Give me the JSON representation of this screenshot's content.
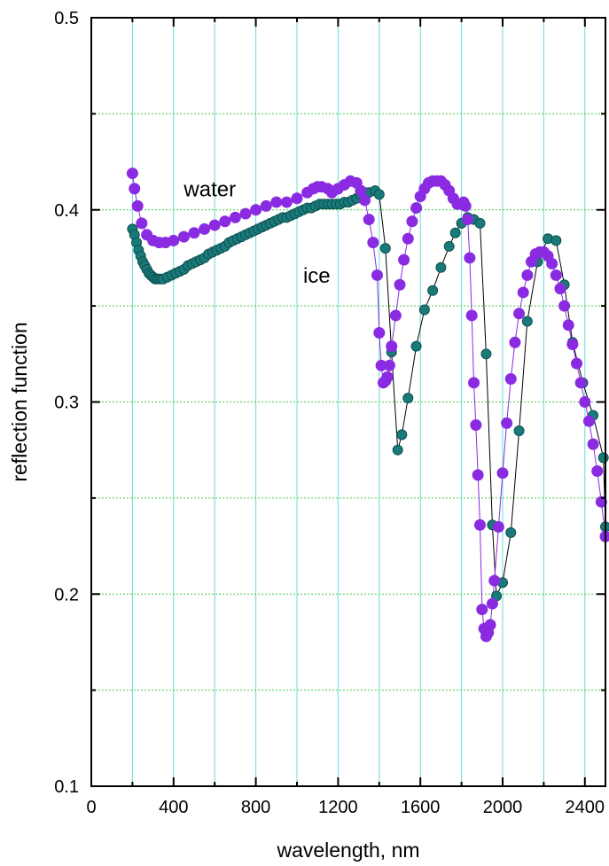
{
  "chart_data": {
    "type": "scatter",
    "xlabel": "wavelength, nm",
    "ylabel": "reflection function",
    "xlim": [
      0,
      2500
    ],
    "ylim": [
      0.1,
      0.5
    ],
    "x_ticks": [
      0,
      400,
      800,
      1200,
      1600,
      2000,
      2400
    ],
    "y_ticks": [
      0.1,
      0.2,
      0.3,
      0.4,
      0.5
    ],
    "x_tick_labels": [
      "0",
      "400",
      "800",
      "1200",
      "1600",
      "2000",
      "2400"
    ],
    "y_tick_labels": [
      "0.1",
      "0.2",
      "0.3",
      "0.4",
      "0.5"
    ],
    "grid": true,
    "colors": {
      "water": "#8a2be2",
      "ice": "#1a7a7a",
      "grid_x": "#66dddd",
      "grid_y": "#44cc44",
      "line": "#000000"
    },
    "series": [
      {
        "name": "water",
        "label_at": [
          450,
          0.407
        ],
        "marker": "circle",
        "x": [
          200,
          210,
          225,
          245,
          270,
          300,
          330,
          360,
          400,
          450,
          500,
          550,
          600,
          650,
          700,
          750,
          800,
          850,
          900,
          950,
          1000,
          1050,
          1080,
          1100,
          1120,
          1150,
          1170,
          1200,
          1230,
          1260,
          1290,
          1310,
          1330,
          1350,
          1370,
          1390,
          1400,
          1410,
          1420,
          1430,
          1440,
          1450,
          1460,
          1480,
          1500,
          1520,
          1540,
          1560,
          1580,
          1600,
          1620,
          1640,
          1660,
          1680,
          1700,
          1720,
          1740,
          1760,
          1780,
          1800,
          1810,
          1820,
          1830,
          1840,
          1850,
          1860,
          1870,
          1880,
          1890,
          1900,
          1910,
          1920,
          1930,
          1940,
          1950,
          1960,
          1980,
          2000,
          2020,
          2040,
          2060,
          2080,
          2100,
          2120,
          2140,
          2160,
          2180,
          2200,
          2220,
          2240,
          2260,
          2280,
          2300,
          2320,
          2340,
          2360,
          2380,
          2400,
          2420,
          2440,
          2460,
          2480,
          2500
        ],
        "y": [
          0.419,
          0.411,
          0.402,
          0.393,
          0.387,
          0.384,
          0.383,
          0.383,
          0.384,
          0.386,
          0.388,
          0.39,
          0.392,
          0.394,
          0.396,
          0.398,
          0.4,
          0.402,
          0.404,
          0.404,
          0.406,
          0.409,
          0.411,
          0.412,
          0.412,
          0.411,
          0.409,
          0.411,
          0.413,
          0.415,
          0.414,
          0.41,
          0.405,
          0.395,
          0.383,
          0.366,
          0.336,
          0.319,
          0.31,
          0.311,
          0.313,
          0.319,
          0.329,
          0.345,
          0.361,
          0.374,
          0.385,
          0.394,
          0.401,
          0.407,
          0.411,
          0.414,
          0.415,
          0.415,
          0.415,
          0.413,
          0.41,
          0.406,
          0.403,
          0.403,
          0.404,
          0.402,
          0.395,
          0.375,
          0.345,
          0.31,
          0.288,
          0.262,
          0.236,
          0.192,
          0.182,
          0.178,
          0.18,
          0.184,
          0.195,
          0.207,
          0.235,
          0.263,
          0.289,
          0.312,
          0.331,
          0.346,
          0.357,
          0.366,
          0.373,
          0.377,
          0.378,
          0.378,
          0.376,
          0.372,
          0.366,
          0.359,
          0.35,
          0.34,
          0.33,
          0.32,
          0.31,
          0.3,
          0.29,
          0.278,
          0.264,
          0.248,
          0.23
        ]
      },
      {
        "name": "ice",
        "label_at": [
          1030,
          0.362
        ],
        "marker": "circle",
        "x": [
          200,
          210,
          220,
          230,
          240,
          250,
          260,
          270,
          280,
          290,
          300,
          310,
          320,
          330,
          340,
          350,
          370,
          390,
          410,
          430,
          450,
          470,
          490,
          510,
          530,
          550,
          570,
          590,
          610,
          630,
          650,
          670,
          690,
          710,
          730,
          750,
          770,
          790,
          810,
          830,
          850,
          870,
          890,
          910,
          930,
          950,
          970,
          990,
          1010,
          1030,
          1050,
          1070,
          1090,
          1110,
          1130,
          1150,
          1170,
          1190,
          1210,
          1230,
          1250,
          1270,
          1290,
          1310,
          1330,
          1350,
          1380,
          1400,
          1430,
          1460,
          1490,
          1510,
          1540,
          1580,
          1620,
          1660,
          1700,
          1740,
          1770,
          1800,
          1830,
          1860,
          1890,
          1920,
          1950,
          1970,
          2000,
          2040,
          2080,
          2120,
          2170,
          2220,
          2260,
          2300,
          2340,
          2390,
          2440,
          2490,
          2500
        ],
        "y": [
          0.39,
          0.387,
          0.383,
          0.379,
          0.376,
          0.373,
          0.371,
          0.369,
          0.367,
          0.366,
          0.365,
          0.364,
          0.364,
          0.364,
          0.364,
          0.364,
          0.365,
          0.366,
          0.367,
          0.368,
          0.369,
          0.371,
          0.372,
          0.373,
          0.374,
          0.375,
          0.377,
          0.378,
          0.379,
          0.38,
          0.381,
          0.383,
          0.384,
          0.385,
          0.386,
          0.387,
          0.388,
          0.389,
          0.39,
          0.391,
          0.392,
          0.393,
          0.394,
          0.395,
          0.396,
          0.396,
          0.397,
          0.398,
          0.399,
          0.4,
          0.401,
          0.401,
          0.402,
          0.403,
          0.403,
          0.403,
          0.403,
          0.403,
          0.403,
          0.404,
          0.404,
          0.405,
          0.406,
          0.408,
          0.409,
          0.409,
          0.41,
          0.408,
          0.38,
          0.326,
          0.275,
          0.283,
          0.302,
          0.329,
          0.348,
          0.358,
          0.37,
          0.381,
          0.388,
          0.393,
          0.396,
          0.395,
          0.393,
          0.325,
          0.236,
          0.199,
          0.206,
          0.232,
          0.285,
          0.342,
          0.373,
          0.385,
          0.384,
          0.361,
          0.331,
          0.31,
          0.293,
          0.271,
          0.235
        ]
      }
    ]
  }
}
